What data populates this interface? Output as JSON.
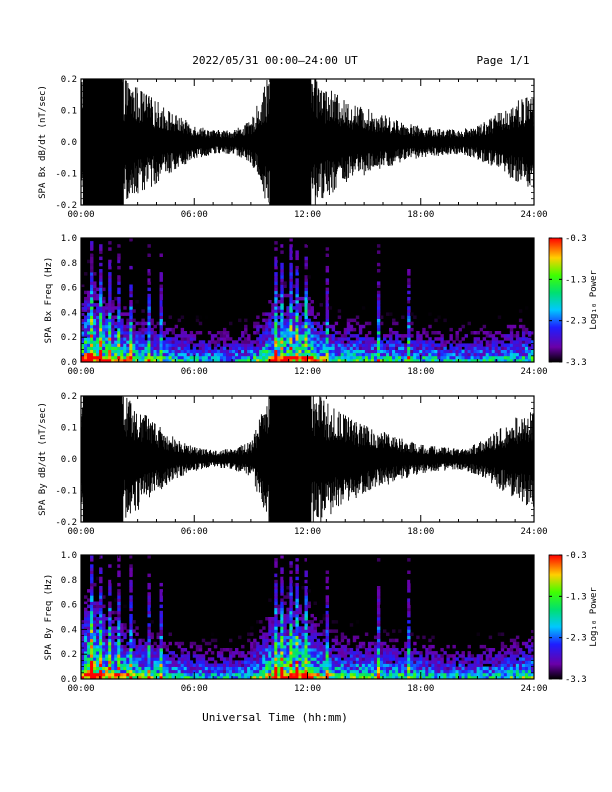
{
  "header": {
    "title": "2022/05/31  00:00–24:00 UT",
    "page": "Page 1/1"
  },
  "xaxis": {
    "label": "Universal Time (hh:mm)",
    "ticks": [
      "00:00",
      "06:00",
      "12:00",
      "18:00",
      "24:00"
    ],
    "range_hours": [
      0,
      24
    ]
  },
  "colorbar": {
    "label": "Log₁₀ Power",
    "ticks": [
      "-0.3",
      "-1.3",
      "-2.3",
      "-3.3"
    ],
    "range": [
      -3.3,
      -0.3
    ]
  },
  "colors": {
    "trace": "#000000",
    "background": "#000000",
    "scale_low": "#000000",
    "scale_high": "#ff0000"
  },
  "chart_data": [
    {
      "type": "line",
      "id": "bx-waveform",
      "ylabel": "SPA Bx dB/dt (nT/sec)",
      "ylim": [
        -0.2,
        0.2
      ],
      "yticks": [
        "0.2",
        "0.1",
        "0.0",
        "-0.1",
        "-0.2"
      ],
      "xlabel": "Universal Time (hh:mm)",
      "envelope": {
        "hours": [
          0,
          0.5,
          1,
          2,
          3,
          4,
          5,
          6,
          7,
          8,
          9,
          10,
          11,
          12,
          12.5,
          13,
          14,
          15,
          16,
          17,
          18,
          19,
          20,
          21,
          22,
          23,
          24
        ],
        "amplitude": [
          0.2,
          0.2,
          0.2,
          0.2,
          0.16,
          0.12,
          0.08,
          0.05,
          0.035,
          0.035,
          0.06,
          0.2,
          0.2,
          0.2,
          0.2,
          0.16,
          0.12,
          0.1,
          0.08,
          0.06,
          0.045,
          0.04,
          0.035,
          0.05,
          0.08,
          0.12,
          0.14
        ]
      }
    },
    {
      "type": "heatmap",
      "id": "bx-spectrogram",
      "ylabel": "SPA Bx Freq (Hz)",
      "ylim": [
        0.0,
        1.0
      ],
      "yticks": [
        "1.0",
        "0.8",
        "0.6",
        "0.4",
        "0.2",
        "0.0"
      ],
      "zlabel": "Log₁₀ Power",
      "zlim": [
        -3.3,
        -0.3
      ],
      "activity": {
        "hours": [
          0,
          0.5,
          1,
          2,
          3,
          4,
          5,
          6,
          7,
          8,
          9,
          10,
          11,
          12,
          13,
          14,
          15,
          16,
          17,
          18,
          19,
          20,
          21,
          22,
          23,
          24
        ],
        "strength": [
          0.7,
          0.95,
          0.8,
          0.6,
          0.45,
          0.35,
          0.28,
          0.2,
          0.15,
          0.15,
          0.25,
          0.65,
          0.8,
          0.75,
          0.4,
          0.35,
          0.33,
          0.3,
          0.28,
          0.25,
          0.2,
          0.18,
          0.18,
          0.22,
          0.3,
          0.35
        ]
      }
    },
    {
      "type": "line",
      "id": "by-waveform",
      "ylabel": "SPA By dB/dt (nT/sec)",
      "ylim": [
        -0.2,
        0.2
      ],
      "yticks": [
        "0.2",
        "0.1",
        "0.0",
        "-0.1",
        "-0.2"
      ],
      "xlabel": "Universal Time (hh:mm)",
      "envelope": {
        "hours": [
          0,
          0.5,
          1,
          2,
          3,
          4,
          5,
          6,
          7,
          8,
          9,
          10,
          11,
          12,
          12.5,
          13,
          14,
          15,
          16,
          17,
          18,
          19,
          20,
          21,
          22,
          23,
          24
        ],
        "amplitude": [
          0.2,
          0.2,
          0.2,
          0.2,
          0.15,
          0.1,
          0.06,
          0.035,
          0.025,
          0.03,
          0.05,
          0.2,
          0.2,
          0.2,
          0.2,
          0.17,
          0.13,
          0.1,
          0.08,
          0.06,
          0.045,
          0.035,
          0.03,
          0.045,
          0.08,
          0.12,
          0.15
        ]
      }
    },
    {
      "type": "heatmap",
      "id": "by-spectrogram",
      "ylabel": "SPA By Freq (Hz)",
      "ylim": [
        0.0,
        1.0
      ],
      "yticks": [
        "1.0",
        "0.8",
        "0.6",
        "0.4",
        "0.2",
        "0.0"
      ],
      "zlabel": "Log₁₀ Power",
      "zlim": [
        -3.3,
        -0.3
      ],
      "activity": {
        "hours": [
          0,
          0.5,
          1,
          2,
          3,
          4,
          5,
          6,
          7,
          8,
          9,
          10,
          11,
          12,
          13,
          14,
          15,
          16,
          17,
          18,
          19,
          20,
          21,
          22,
          23,
          24
        ],
        "strength": [
          0.75,
          1.0,
          0.85,
          0.65,
          0.5,
          0.38,
          0.3,
          0.22,
          0.17,
          0.17,
          0.28,
          0.7,
          0.85,
          0.8,
          0.45,
          0.4,
          0.38,
          0.35,
          0.3,
          0.27,
          0.22,
          0.2,
          0.2,
          0.25,
          0.33,
          0.4
        ]
      }
    }
  ]
}
